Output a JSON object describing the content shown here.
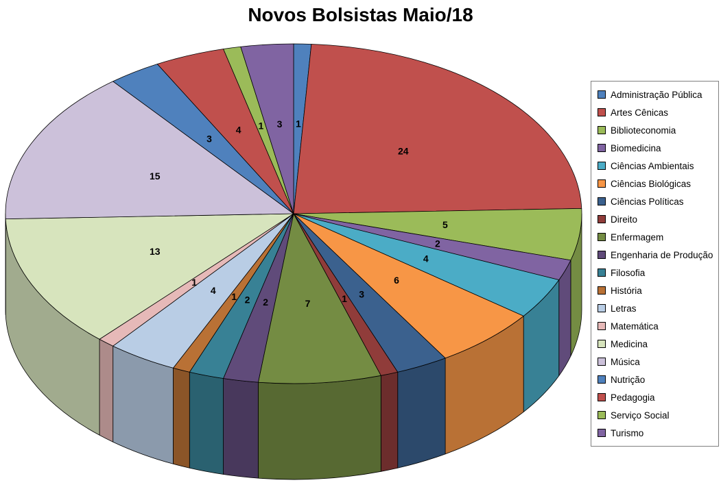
{
  "title": "Novos Bolsistas Maio/18",
  "chart_data": {
    "type": "pie",
    "style": "3d-pie",
    "title": "Novos Bolsistas Maio/18",
    "legend_position": "right",
    "data_labels": "values",
    "start_angle_deg": 0,
    "direction": "clockwise",
    "total": 102,
    "categories": [
      "Administração Pública",
      "Artes Cênicas",
      "Biblioteconomia",
      "Biomedicina",
      "Ciências Ambientais",
      "Ciências Biológicas",
      "Ciências Políticas",
      "Direito",
      "Enfermagem",
      "Engenharia de Produção",
      "Filosofia",
      "História",
      "Letras",
      "Matemática",
      "Medicina",
      "Música",
      "Nutrição",
      "Pedagogia",
      "Serviço Social",
      "Turismo"
    ],
    "values": [
      1,
      24,
      5,
      2,
      4,
      6,
      3,
      1,
      7,
      2,
      2,
      1,
      4,
      1,
      13,
      15,
      3,
      4,
      1,
      3
    ],
    "colors": [
      "#4F81BD",
      "#C0504D",
      "#9BBB59",
      "#8064A2",
      "#4BACC6",
      "#F79646",
      "#3B618E",
      "#903C3A",
      "#748C43",
      "#604B7A",
      "#388195",
      "#B97135",
      "#B9CDE5",
      "#E6B9B8",
      "#D7E4BD",
      "#CCC1DA",
      "#4F81BD",
      "#C0504D",
      "#9BBB59",
      "#8064A2"
    ],
    "label_color": "#000000",
    "outline_color": "#000000"
  }
}
